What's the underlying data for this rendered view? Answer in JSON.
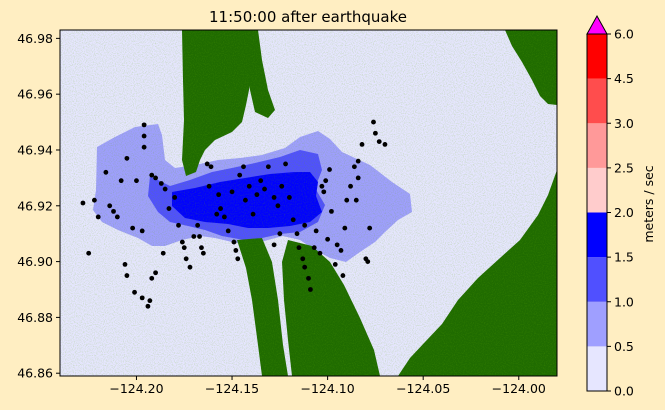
{
  "chart_data": {
    "type": "heatmap",
    "title": "11:50:00 after earthquake",
    "x_ticks": [
      {
        "value": -124.2,
        "label": "−124.20"
      },
      {
        "value": -124.15,
        "label": "−124.15"
      },
      {
        "value": -124.1,
        "label": "−124.10"
      },
      {
        "value": -124.05,
        "label": "−124.05"
      },
      {
        "value": -124.0,
        "label": "−124.00"
      }
    ],
    "y_ticks": [
      {
        "value": 46.86,
        "label": "46.86"
      },
      {
        "value": 46.88,
        "label": "46.88"
      },
      {
        "value": 46.9,
        "label": "46.90"
      },
      {
        "value": 46.92,
        "label": "46.92"
      },
      {
        "value": 46.94,
        "label": "46.94"
      },
      {
        "value": 46.96,
        "label": "46.96"
      },
      {
        "value": 46.98,
        "label": "46.98"
      }
    ],
    "xlim": [
      -124.24,
      -123.98
    ],
    "ylim": [
      46.859,
      46.983
    ],
    "grid": false,
    "colorbar": {
      "label": "meters / sec",
      "extend": "max",
      "boundaries": [
        {
          "value": 0.0,
          "label": "0.0"
        },
        {
          "value": 0.5,
          "label": "0.5"
        },
        {
          "value": 1.0,
          "label": "1.0"
        },
        {
          "value": 1.5,
          "label": "1.5"
        },
        {
          "value": 2.0,
          "label": "2.0"
        },
        {
          "value": 2.5,
          "label": "2.5"
        },
        {
          "value": 3.0,
          "label": "3.0"
        },
        {
          "value": 4.5,
          "label": "4.5"
        },
        {
          "value": 6.0,
          "label": "6.0"
        }
      ],
      "colors": [
        "#e6e6ff",
        "#9f9fff",
        "#5050ff",
        "#0000ff",
        "#ffcccc",
        "#ff9999",
        "#ff4d4d",
        "#ff0000"
      ],
      "over_color": "#ff00ff"
    },
    "land_color": "#1f6b00",
    "points": [
      [
        -124.228,
        46.921
      ],
      [
        -124.222,
        46.922
      ],
      [
        -124.22,
        46.916
      ],
      [
        -124.216,
        46.932
      ],
      [
        -124.214,
        46.92
      ],
      [
        -124.212,
        46.918
      ],
      [
        -124.21,
        46.916
      ],
      [
        -124.208,
        46.929
      ],
      [
        -124.205,
        46.937
      ],
      [
        -124.2,
        46.929
      ],
      [
        -124.202,
        46.912
      ],
      [
        -124.197,
        46.911
      ],
      [
        -124.196,
        46.949
      ],
      [
        -124.196,
        46.945
      ],
      [
        -124.196,
        46.941
      ],
      [
        -124.192,
        46.931
      ],
      [
        -124.19,
        46.93
      ],
      [
        -124.187,
        46.928
      ],
      [
        -124.185,
        46.926
      ],
      [
        -124.183,
        46.919
      ],
      [
        -124.18,
        46.923
      ],
      [
        -124.178,
        46.913
      ],
      [
        -124.176,
        46.907
      ],
      [
        -124.175,
        46.905
      ],
      [
        -124.174,
        46.901
      ],
      [
        -124.172,
        46.898
      ],
      [
        -124.17,
        46.909
      ],
      [
        -124.168,
        46.913
      ],
      [
        -124.167,
        46.909
      ],
      [
        -124.166,
        46.905
      ],
      [
        -124.165,
        46.903
      ],
      [
        -124.163,
        46.935
      ],
      [
        -124.162,
        46.927
      ],
      [
        -124.161,
        46.934
      ],
      [
        -124.158,
        46.917
      ],
      [
        -124.157,
        46.924
      ],
      [
        -124.156,
        46.919
      ],
      [
        -124.154,
        46.916
      ],
      [
        -124.152,
        46.911
      ],
      [
        -124.15,
        46.925
      ],
      [
        -124.149,
        46.907
      ],
      [
        -124.148,
        46.904
      ],
      [
        -124.147,
        46.901
      ],
      [
        -124.146,
        46.931
      ],
      [
        -124.144,
        46.934
      ],
      [
        -124.143,
        46.922
      ],
      [
        -124.141,
        46.927
      ],
      [
        -124.139,
        46.917
      ],
      [
        -124.137,
        46.924
      ],
      [
        -124.135,
        46.929
      ],
      [
        -124.133,
        46.926
      ],
      [
        -124.131,
        46.934
      ],
      [
        -124.128,
        46.923
      ],
      [
        -124.126,
        46.92
      ],
      [
        -124.124,
        46.927
      ],
      [
        -124.122,
        46.935
      ],
      [
        -124.12,
        46.923
      ],
      [
        -124.118,
        46.915
      ],
      [
        -124.116,
        46.91
      ],
      [
        -124.115,
        46.905
      ],
      [
        -124.113,
        46.901
      ],
      [
        -124.112,
        46.898
      ],
      [
        -124.11,
        46.894
      ],
      [
        -124.109,
        46.89
      ],
      [
        -124.107,
        46.905
      ],
      [
        -124.106,
        46.911
      ],
      [
        -124.104,
        46.903
      ],
      [
        -124.103,
        46.927
      ],
      [
        -124.102,
        46.925
      ],
      [
        -124.101,
        46.929
      ],
      [
        -124.099,
        46.933
      ],
      [
        -124.098,
        46.918
      ],
      [
        -124.096,
        46.899
      ],
      [
        -124.095,
        46.906
      ],
      [
        -124.093,
        46.904
      ],
      [
        -124.091,
        46.912
      ],
      [
        -124.09,
        46.922
      ],
      [
        -124.088,
        46.927
      ],
      [
        -124.086,
        46.934
      ],
      [
        -124.084,
        46.936
      ],
      [
        -124.082,
        46.942
      ],
      [
        -124.08,
        46.901
      ],
      [
        -124.079,
        46.9
      ],
      [
        -124.078,
        46.912
      ],
      [
        -124.076,
        46.95
      ],
      [
        -124.075,
        46.946
      ],
      [
        -124.073,
        46.943
      ],
      [
        -124.07,
        46.942
      ],
      [
        -124.084,
        46.93
      ],
      [
        -124.085,
        46.922
      ],
      [
        -124.092,
        46.895
      ],
      [
        -124.1,
        46.908
      ],
      [
        -124.112,
        46.913
      ],
      [
        -124.125,
        46.91
      ],
      [
        -124.128,
        46.906
      ],
      [
        -124.19,
        46.896
      ],
      [
        -124.186,
        46.903
      ],
      [
        -124.192,
        46.894
      ],
      [
        -124.201,
        46.889
      ],
      [
        -124.197,
        46.887
      ],
      [
        -124.193,
        46.886
      ],
      [
        -124.194,
        46.884
      ],
      [
        -124.206,
        46.899
      ],
      [
        -124.205,
        46.895
      ],
      [
        -124.225,
        46.903
      ]
    ]
  }
}
